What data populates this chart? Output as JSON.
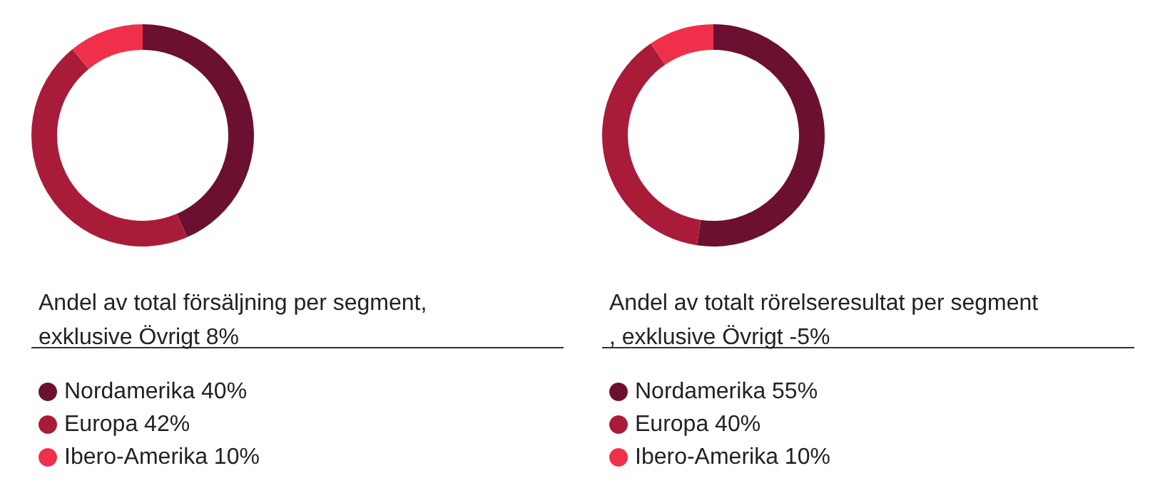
{
  "chart_data": [
    {
      "type": "donut",
      "title": "Andel av total försäljning per segment, exklusive Övrigt 8%",
      "categories": [
        "Nordamerika",
        "Europa",
        "Ibero-Amerika"
      ],
      "values": [
        40,
        42,
        10
      ],
      "value_labels": [
        "40%",
        "42%",
        "10%"
      ],
      "colors": [
        "#6b1030",
        "#a81c3a",
        "#f0304a"
      ],
      "legend": "bottom left"
    },
    {
      "type": "donut",
      "title": "Andel av totalt rörelseresultat per segment, exklusive Övrigt -5%",
      "categories": [
        "Nordamerika",
        "Europa",
        "Ibero-Amerika"
      ],
      "values": [
        55,
        40,
        10
      ],
      "value_labels": [
        "55%",
        "40%",
        "10%"
      ],
      "colors": [
        "#6b1030",
        "#a81c3a",
        "#f0304a"
      ],
      "legend": "bottom left"
    }
  ]
}
